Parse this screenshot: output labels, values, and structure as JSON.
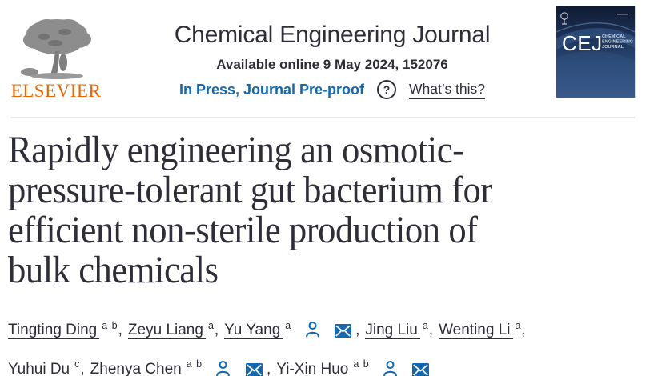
{
  "colors": {
    "accent_blue": "#1268b3",
    "text_dark": "#2e2e38",
    "elsevier_orange": "#ec6500",
    "divider": "#ebebeb",
    "cover_navy_top": "#101b33",
    "cover_navy_bottom": "#3f6398"
  },
  "header": {
    "elsevier_wordmark": "ELSEVIER",
    "journal_title": "Chemical Engineering Journal",
    "availability": "Available online 9 May 2024, 152076",
    "in_press_link": "In Press, Journal Pre-proof",
    "help_icon_glyph": "?",
    "whats_this_link": "What’s this?",
    "cover": {
      "abbreviation": "CEJ",
      "name_line1": "CHEMICAL",
      "name_line2": "ENGINEERING",
      "name_line3": "JOURNAL"
    }
  },
  "article": {
    "title": "Rapidly engineering an osmotic-pressure-tolerant gut bacterium for efficient non-sterile production of bulk chemicals",
    "title_lines": [
      "Rapidly engineering an osmotic-",
      "pressure-tolerant gut bacterium for",
      "efficient non-sterile production of",
      "bulk chemicals"
    ]
  },
  "authors": {
    "separator": ",",
    "list": [
      {
        "name": "Tingting Ding",
        "sup": "a b",
        "profile": false,
        "email": false,
        "br": false
      },
      {
        "name": "Zeyu Liang",
        "sup": "a",
        "profile": false,
        "email": false,
        "br": false
      },
      {
        "name": "Yu Yang",
        "sup": "a",
        "profile": true,
        "email": true,
        "br": false
      },
      {
        "name": "Jing Liu",
        "sup": "a",
        "profile": false,
        "email": false,
        "br": false
      },
      {
        "name": "Wenting Li",
        "sup": "a",
        "profile": false,
        "email": false,
        "br": true
      },
      {
        "name": "Yuhui Du",
        "sup": "c",
        "profile": false,
        "email": false,
        "br": false
      },
      {
        "name": "Zhenya Chen",
        "sup": "a b",
        "profile": true,
        "email": true,
        "br": false
      },
      {
        "name": "Yi-Xin Huo",
        "sup": "a b",
        "profile": true,
        "email": true,
        "br": false
      }
    ]
  }
}
